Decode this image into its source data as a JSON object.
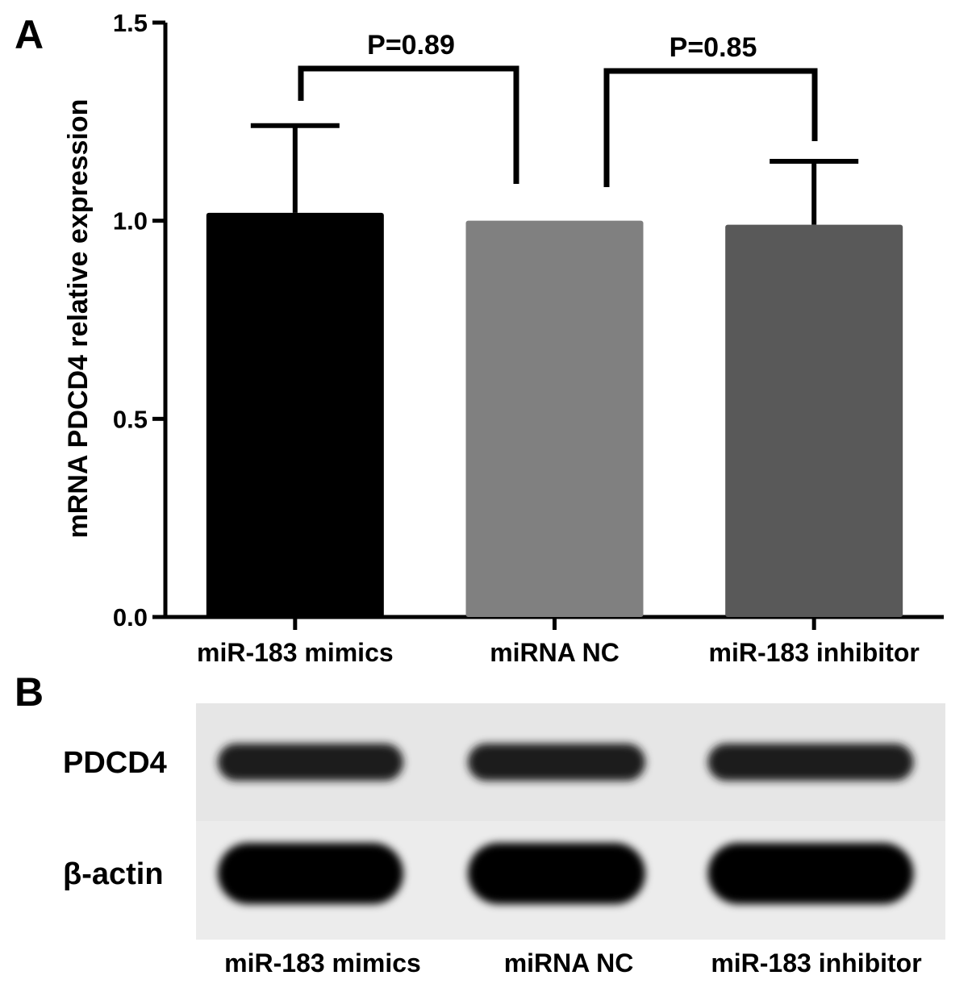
{
  "panel_labels": [
    "A",
    "B"
  ],
  "chart_data": {
    "type": "bar",
    "y_label": "mRNA PDCD4 relative expression",
    "categories": [
      "miR-183 mimics",
      "miRNA NC",
      "miR-183 inhibitor"
    ],
    "values": [
      1.02,
      1.0,
      0.99
    ],
    "errors": [
      0.22,
      null,
      0.16
    ],
    "colors": [
      "#000000",
      "#808080",
      "#595959"
    ],
    "ylim": [
      0,
      1.5
    ],
    "yticks": [
      {
        "value": 0,
        "label": "0.0"
      },
      0.5,
      {
        "value": 1,
        "label": "1.0"
      },
      1.5
    ],
    "annotations": [
      "P=0.89",
      "P=0.85"
    ]
  },
  "blot": {
    "rows": [
      "PDCD4",
      "β-actin"
    ],
    "lanes": [
      "miR-183 mimics",
      "miRNA NC",
      "miR-183 inhibitor"
    ]
  }
}
